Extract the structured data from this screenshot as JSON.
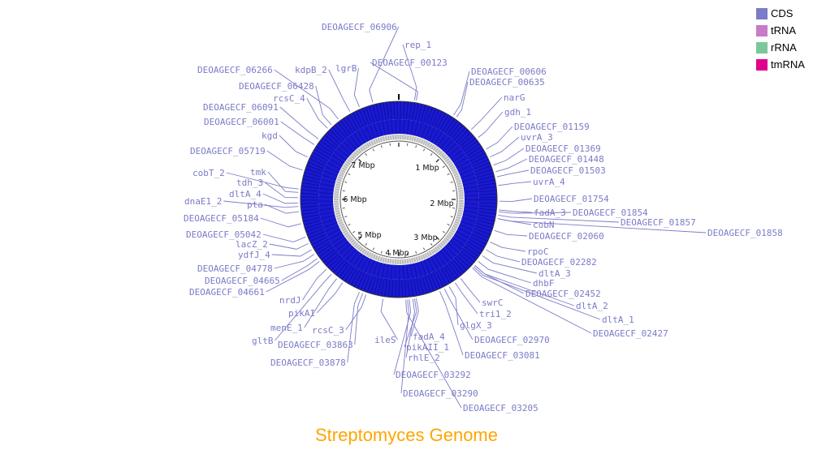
{
  "title": "Streptomyces Genome",
  "title_color": "#FFA500",
  "label_color": "#7b7bc8",
  "legend": [
    {
      "label": "CDS",
      "color": "#7b7bc8"
    },
    {
      "label": "tRNA",
      "color": "#c77bc8"
    },
    {
      "label": "rRNA",
      "color": "#7bc89a"
    },
    {
      "label": "tmRNA",
      "color": "#e0008c"
    }
  ],
  "scale_labels": [
    "1 Mbp",
    "2 Mbp",
    "3 Mbp",
    "4 Mbp",
    "5 Mbp",
    "6 Mbp",
    "7 Mbp"
  ],
  "gene_labels": [
    "DEOAGECF_06906",
    "rep_1",
    "DEOAGECF_00123",
    "DEOAGECF_00606",
    "DEOAGECF_00635",
    "narG",
    "gdh_1",
    "DEOAGECF_01159",
    "uvrA_3",
    "DEOAGECF_01369",
    "DEOAGECF_01448",
    "DEOAGECF_01503",
    "uvrA_4",
    "DEOAGECF_01754",
    "fadA_3",
    "DEOAGECF_01854",
    "DEOAGECF_01857",
    "DEOAGECF_01858",
    "cobN",
    "DEOAGECF_02060",
    "rpoC",
    "DEOAGECF_02282",
    "dltA_3",
    "dhbF",
    "DEOAGECF_02452",
    "dltA_2",
    "dltA_1",
    "DEOAGECF_02427",
    "swrC",
    "tri1_2",
    "glgX_3",
    "DEOAGECF_02970",
    "DEOAGECF_03081",
    "fadA_4",
    "pikAII_1",
    "rhlE_2",
    "DEOAGECF_03292",
    "DEOAGECF_03290",
    "DEOAGECF_03205",
    "ileS",
    "rcsC_3",
    "DEOAGECF_03863",
    "DEOAGECF_03878",
    "pikAI",
    "menE_1",
    "gltB",
    "nrdJ",
    "DEOAGECF_04661",
    "DEOAGECF_04665",
    "DEOAGECF_04778",
    "ydfJ_4",
    "lacZ_2",
    "DEOAGECF_05042",
    "DEOAGECF_05184",
    "pta",
    "dnaE1_2",
    "dltA_4",
    "tdh_3",
    "tmk",
    "cobT_2",
    "DEOAGECF_05719",
    "kgd",
    "DEOAGECF_06001",
    "DEOAGECF_06091",
    "rcsC_4",
    "DEOAGECF_06428",
    "DEOAGECF_06266",
    "kdpB_2",
    "lgrB"
  ]
}
